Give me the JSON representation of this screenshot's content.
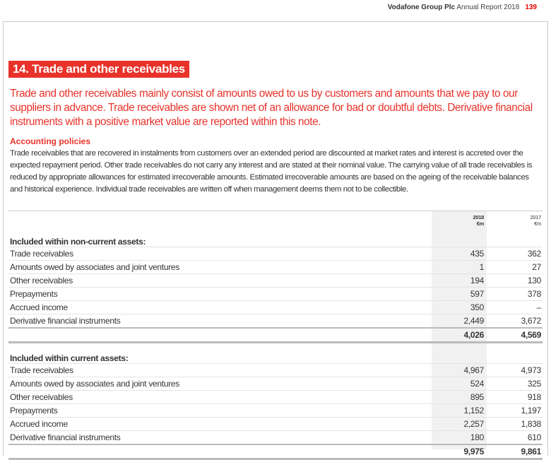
{
  "header": {
    "company": "Vodafone Group Plc",
    "report": "Annual Report 2018",
    "page": "139"
  },
  "section_title": "14. Trade and other receivables",
  "intro": "Trade and other receivables mainly consist of amounts owed to us by customers and amounts that we pay to our suppliers in advance. Trade receivables are shown net of an allowance for bad or doubtful debts. Derivative financial instruments with a positive market value are reported within this note.",
  "accounting_policies": {
    "heading": "Accounting policies",
    "text": "Trade receivables that are recovered in instalments from customers over an extended period are discounted at market rates and interest is accreted over the expected repayment period. Other trade receivables do not carry any interest and are stated at their nominal value. The carrying value of all trade receivables is reduced by appropriate allowances for estimated irrecoverable amounts. Estimated irrecoverable amounts are based on the ageing of the receivable balances and historical experience. Individual trade receivables are written off when management deems them not to be collectible."
  },
  "table": {
    "columns": [
      {
        "year": "2018",
        "unit": "€m"
      },
      {
        "year": "2017",
        "unit": "€m"
      }
    ],
    "non_current": {
      "label": "Included within non-current assets:",
      "rows": [
        {
          "label": "Trade receivables",
          "v2018": "435",
          "v2017": "362"
        },
        {
          "label": "Amounts owed by associates and joint ventures",
          "v2018": "1",
          "v2017": "27"
        },
        {
          "label": "Other receivables",
          "v2018": "194",
          "v2017": "130"
        },
        {
          "label": "Prepayments",
          "v2018": "597",
          "v2017": "378"
        },
        {
          "label": "Accrued income",
          "v2018": "350",
          "v2017": "–"
        },
        {
          "label": "Derivative financial instruments",
          "v2018": "2,449",
          "v2017": "3,672"
        }
      ],
      "total2018": "4,026",
      "total2017": "4,569"
    },
    "current": {
      "label": "Included within current assets:",
      "rows": [
        {
          "label": "Trade receivables",
          "v2018": "4,967",
          "v2017": "4,973"
        },
        {
          "label": "Amounts owed by associates and joint ventures",
          "v2018": "524",
          "v2017": "325"
        },
        {
          "label": "Other receivables",
          "v2018": "895",
          "v2017": "918"
        },
        {
          "label": "Prepayments",
          "v2018": "1,152",
          "v2017": "1,197"
        },
        {
          "label": "Accrued income",
          "v2018": "2,257",
          "v2017": "1,838"
        },
        {
          "label": "Derivative financial instruments",
          "v2018": "180",
          "v2017": "610"
        }
      ],
      "total2018": "9,975",
      "total2017": "9,861"
    }
  }
}
